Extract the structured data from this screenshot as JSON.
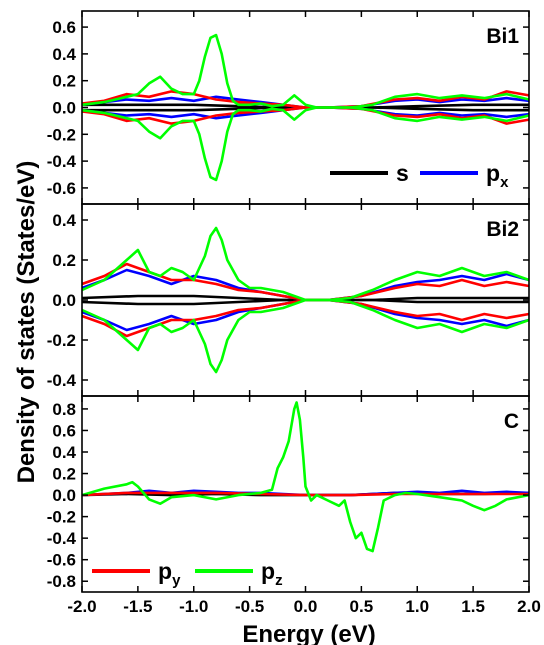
{
  "chart_data": {
    "type": "line",
    "xlabel": "Energy (eV)",
    "ylabel": "Density of states (States/eV)",
    "xlim": [
      -2.0,
      2.0
    ],
    "xticks": [
      -2.0,
      -1.5,
      -1.0,
      -0.5,
      0.0,
      0.5,
      1.0,
      1.5,
      2.0
    ],
    "x_tick_labels": [
      "-2.0",
      "-1.5",
      "-1.0",
      "-0.5",
      "0.0",
      "0.5",
      "1.0",
      "1.5",
      "2.0"
    ],
    "colors": {
      "s": "#000000",
      "px": "#0000ff",
      "py": "#ff0000",
      "pz": "#00ff00"
    },
    "legend": [
      {
        "key": "s",
        "label": "s",
        "sub": ""
      },
      {
        "key": "px",
        "label": "p",
        "sub": "x"
      },
      {
        "key": "py",
        "label": "p",
        "sub": "y"
      },
      {
        "key": "pz",
        "label": "p",
        "sub": "z"
      }
    ],
    "panels": [
      {
        "label": "Bi1",
        "ylim": [
          -0.72,
          0.72
        ],
        "yticks": [
          -0.6,
          -0.4,
          -0.2,
          0.0,
          0.2,
          0.4,
          0.6
        ],
        "y_tick_labels": [
          "-0.6",
          "-0.4",
          "-0.2",
          "0.0",
          "0.2",
          "0.4",
          "0.6"
        ],
        "spin_polarized": true,
        "series": [
          {
            "key": "s",
            "x": [
              -2.0,
              -1.5,
              -1.0,
              -0.6,
              -0.2,
              0.2,
              0.6,
              1.0,
              1.5,
              2.0
            ],
            "y": [
              0.02,
              0.02,
              0.02,
              0.01,
              0.0,
              0.0,
              0.0,
              0.01,
              0.02,
              0.02
            ]
          },
          {
            "key": "px",
            "x": [
              -2.0,
              -1.8,
              -1.6,
              -1.4,
              -1.2,
              -1.0,
              -0.8,
              -0.6,
              -0.4,
              -0.2,
              0.0,
              0.2,
              0.5,
              0.8,
              1.0,
              1.2,
              1.4,
              1.6,
              1.8,
              2.0
            ],
            "y": [
              0.02,
              0.04,
              0.06,
              0.05,
              0.07,
              0.05,
              0.08,
              0.06,
              0.04,
              0.02,
              0.0,
              0.0,
              0.01,
              0.05,
              0.06,
              0.04,
              0.06,
              0.05,
              0.07,
              0.05
            ]
          },
          {
            "key": "py",
            "x": [
              -2.0,
              -1.8,
              -1.6,
              -1.4,
              -1.2,
              -1.0,
              -0.8,
              -0.6,
              -0.4,
              -0.2,
              0.0,
              0.2,
              0.5,
              0.8,
              1.0,
              1.2,
              1.4,
              1.6,
              1.8,
              2.0
            ],
            "y": [
              0.03,
              0.05,
              0.1,
              0.08,
              0.12,
              0.1,
              0.06,
              0.04,
              0.03,
              0.02,
              0.0,
              0.0,
              0.01,
              0.06,
              0.07,
              0.05,
              0.08,
              0.06,
              0.12,
              0.09
            ]
          },
          {
            "key": "pz",
            "x": [
              -2.0,
              -1.8,
              -1.6,
              -1.5,
              -1.4,
              -1.3,
              -1.2,
              -1.1,
              -1.0,
              -0.95,
              -0.9,
              -0.85,
              -0.8,
              -0.75,
              -0.7,
              -0.65,
              -0.6,
              -0.5,
              -0.4,
              -0.3,
              -0.2,
              -0.1,
              0.0,
              0.1,
              0.2,
              0.4,
              0.6,
              0.8,
              1.0,
              1.2,
              1.4,
              1.6,
              1.8,
              2.0
            ],
            "y": [
              0.02,
              0.04,
              0.08,
              0.1,
              0.18,
              0.23,
              0.14,
              0.1,
              0.1,
              0.2,
              0.38,
              0.52,
              0.54,
              0.4,
              0.18,
              0.05,
              0.02,
              0.02,
              0.03,
              0.01,
              0.02,
              0.09,
              0.02,
              0.0,
              0.0,
              0.0,
              0.02,
              0.08,
              0.1,
              0.07,
              0.09,
              0.07,
              0.1,
              0.06
            ]
          }
        ]
      },
      {
        "label": "Bi2",
        "ylim": [
          -0.48,
          0.48
        ],
        "yticks": [
          -0.4,
          -0.2,
          0.0,
          0.2,
          0.4
        ],
        "y_tick_labels": [
          "-0.4",
          "-0.2",
          "0.0",
          "0.2",
          "0.4"
        ],
        "spin_polarized": true,
        "series": [
          {
            "key": "s",
            "x": [
              -2.0,
              -1.5,
              -1.0,
              -0.6,
              -0.2,
              0.2,
              0.6,
              1.0,
              1.5,
              2.0
            ],
            "y": [
              0.01,
              0.02,
              0.02,
              0.01,
              0.0,
              0.0,
              0.0,
              0.01,
              0.01,
              0.01
            ]
          },
          {
            "key": "px",
            "x": [
              -2.0,
              -1.8,
              -1.6,
              -1.4,
              -1.2,
              -1.0,
              -0.8,
              -0.6,
              -0.4,
              -0.2,
              0.0,
              0.2,
              0.5,
              0.8,
              1.0,
              1.2,
              1.4,
              1.6,
              1.8,
              2.0
            ],
            "y": [
              0.06,
              0.1,
              0.15,
              0.12,
              0.08,
              0.12,
              0.1,
              0.06,
              0.04,
              0.02,
              0.0,
              0.0,
              0.02,
              0.07,
              0.09,
              0.1,
              0.12,
              0.1,
              0.13,
              0.1
            ]
          },
          {
            "key": "py",
            "x": [
              -2.0,
              -1.8,
              -1.6,
              -1.4,
              -1.2,
              -1.0,
              -0.8,
              -0.6,
              -0.4,
              -0.2,
              0.0,
              0.2,
              0.5,
              0.8,
              1.0,
              1.2,
              1.4,
              1.6,
              1.8,
              2.0
            ],
            "y": [
              0.08,
              0.12,
              0.18,
              0.14,
              0.1,
              0.1,
              0.08,
              0.05,
              0.04,
              0.02,
              0.0,
              0.0,
              0.02,
              0.06,
              0.08,
              0.07,
              0.1,
              0.07,
              0.09,
              0.07
            ]
          },
          {
            "key": "pz",
            "x": [
              -2.0,
              -1.8,
              -1.6,
              -1.5,
              -1.4,
              -1.3,
              -1.2,
              -1.1,
              -1.0,
              -0.9,
              -0.85,
              -0.8,
              -0.75,
              -0.7,
              -0.6,
              -0.5,
              -0.4,
              -0.3,
              -0.2,
              -0.1,
              0.0,
              0.2,
              0.4,
              0.6,
              0.8,
              1.0,
              1.2,
              1.4,
              1.6,
              1.8,
              2.0
            ],
            "y": [
              0.05,
              0.1,
              0.2,
              0.25,
              0.14,
              0.12,
              0.16,
              0.14,
              0.1,
              0.22,
              0.32,
              0.36,
              0.3,
              0.2,
              0.1,
              0.06,
              0.06,
              0.05,
              0.04,
              0.02,
              0.0,
              0.0,
              0.01,
              0.05,
              0.1,
              0.14,
              0.12,
              0.16,
              0.12,
              0.14,
              0.1
            ]
          }
        ]
      },
      {
        "label": "C",
        "ylim": [
          -0.9,
          0.92
        ],
        "yticks": [
          -0.8,
          -0.6,
          -0.4,
          -0.2,
          0.0,
          0.2,
          0.4,
          0.6,
          0.8
        ],
        "y_tick_labels": [
          "-0.8",
          "-0.6",
          "-0.4",
          "-0.2",
          "0.0",
          "0.2",
          "0.4",
          "0.6",
          "0.8"
        ],
        "spin_polarized": false,
        "series": [
          {
            "key": "s",
            "x": [
              -2.0,
              -1.6,
              -1.2,
              -0.8,
              -0.4,
              0.0,
              0.4,
              0.8,
              1.2,
              1.6,
              2.0
            ],
            "y": [
              0.0,
              0.01,
              0.0,
              0.01,
              0.0,
              0.0,
              0.0,
              0.02,
              0.01,
              0.01,
              0.02
            ]
          },
          {
            "key": "px",
            "x": [
              -2.0,
              -1.6,
              -1.4,
              -1.2,
              -1.0,
              -0.8,
              -0.6,
              -0.4,
              -0.2,
              0.0,
              0.4,
              0.8,
              1.0,
              1.2,
              1.4,
              1.6,
              1.8,
              2.0
            ],
            "y": [
              0.0,
              0.02,
              0.04,
              0.02,
              0.04,
              0.03,
              0.02,
              0.02,
              0.01,
              0.0,
              0.0,
              0.02,
              0.03,
              0.02,
              0.04,
              0.02,
              0.03,
              0.02
            ]
          },
          {
            "key": "py",
            "x": [
              -2.0,
              -1.6,
              -1.2,
              -0.8,
              -0.4,
              0.0,
              0.4,
              0.8,
              1.2,
              1.6,
              2.0
            ],
            "y": [
              0.0,
              0.02,
              0.02,
              0.02,
              0.01,
              0.0,
              0.0,
              0.01,
              0.01,
              0.01,
              0.01
            ]
          },
          {
            "key": "pz",
            "x": [
              -2.0,
              -1.8,
              -1.6,
              -1.55,
              -1.5,
              -1.4,
              -1.3,
              -1.2,
              -1.0,
              -0.8,
              -0.6,
              -0.4,
              -0.3,
              -0.25,
              -0.2,
              -0.15,
              -0.1,
              -0.08,
              -0.05,
              -0.02,
              0.0,
              0.05,
              0.1,
              0.2,
              0.3,
              0.35,
              0.4,
              0.45,
              0.5,
              0.55,
              0.6,
              0.65,
              0.7,
              0.8,
              0.9,
              1.0,
              1.2,
              1.4,
              1.5,
              1.6,
              1.7,
              1.8,
              2.0
            ],
            "y": [
              0.0,
              0.06,
              0.1,
              0.12,
              0.08,
              -0.04,
              -0.08,
              -0.02,
              0.0,
              -0.04,
              0.0,
              0.02,
              0.05,
              0.25,
              0.35,
              0.5,
              0.8,
              0.86,
              0.7,
              0.35,
              0.08,
              -0.05,
              0.0,
              -0.05,
              -0.1,
              -0.05,
              -0.25,
              -0.4,
              -0.35,
              -0.5,
              -0.52,
              -0.3,
              -0.05,
              0.0,
              0.02,
              0.01,
              -0.02,
              -0.05,
              -0.1,
              -0.14,
              -0.1,
              -0.04,
              0.0
            ]
          }
        ]
      }
    ]
  }
}
